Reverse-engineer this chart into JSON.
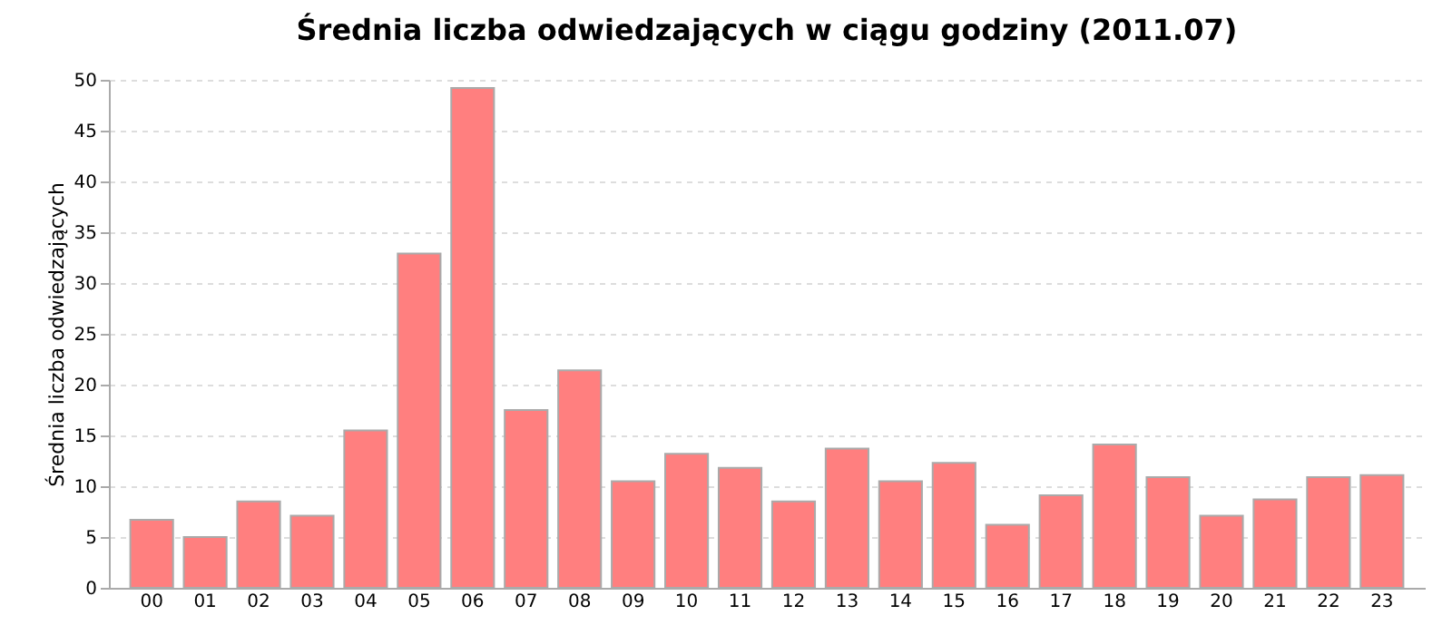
{
  "chart_data": {
    "type": "bar",
    "title": "Średnia liczba odwiedzających w ciągu godziny (2011.07)",
    "ylabel": "Średnia liczba odwiedzających",
    "categories": [
      "00",
      "01",
      "02",
      "03",
      "04",
      "05",
      "06",
      "07",
      "08",
      "09",
      "10",
      "11",
      "12",
      "13",
      "14",
      "15",
      "16",
      "17",
      "18",
      "19",
      "20",
      "21",
      "22",
      "23"
    ],
    "values": [
      6.7,
      5.0,
      8.5,
      7.1,
      15.5,
      32.9,
      49.2,
      17.5,
      21.4,
      10.5,
      13.2,
      11.8,
      8.5,
      13.7,
      10.5,
      12.3,
      6.2,
      9.1,
      14.1,
      10.9,
      7.1,
      8.7,
      10.9,
      11.1
    ],
    "color": "#ff7f7f",
    "ylim": [
      0,
      50
    ],
    "yticks": [
      0,
      5,
      10,
      15,
      20,
      25,
      30,
      35,
      40,
      45,
      50
    ],
    "grid": "y",
    "legend": false
  }
}
